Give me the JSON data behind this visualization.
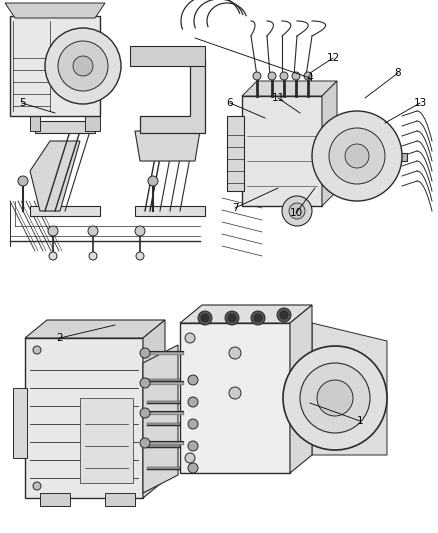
{
  "bg_color": "#f5f5f5",
  "line_color": "#2a2a2a",
  "label_color": "#000000",
  "label_fontsize": 7.5,
  "fig_width": 4.38,
  "fig_height": 5.33,
  "dpi": 100,
  "top_left": {
    "region": [
      0.01,
      0.495,
      0.485,
      0.985
    ],
    "label4": [
      0.29,
      0.755,
      0.17,
      0.805
    ],
    "label5": [
      0.05,
      0.715,
      0.085,
      0.705
    ]
  },
  "top_right": {
    "region": [
      0.505,
      0.495,
      0.995,
      0.985
    ],
    "label6": [
      0.525,
      0.745,
      0.555,
      0.73
    ],
    "label7": [
      0.535,
      0.565,
      0.565,
      0.595
    ],
    "label8": [
      0.845,
      0.815,
      0.805,
      0.785
    ],
    "label10": [
      0.655,
      0.565,
      0.66,
      0.595
    ],
    "label11": [
      0.6,
      0.72,
      0.625,
      0.71
    ],
    "label12": [
      0.715,
      0.84,
      0.665,
      0.835
    ],
    "label13": [
      0.895,
      0.75,
      0.855,
      0.725
    ]
  },
  "bottom": {
    "region": [
      0.01,
      0.01,
      0.99,
      0.485
    ],
    "label1": [
      0.74,
      0.16,
      0.585,
      0.195
    ],
    "label2": [
      0.105,
      0.275,
      0.18,
      0.29
    ]
  }
}
